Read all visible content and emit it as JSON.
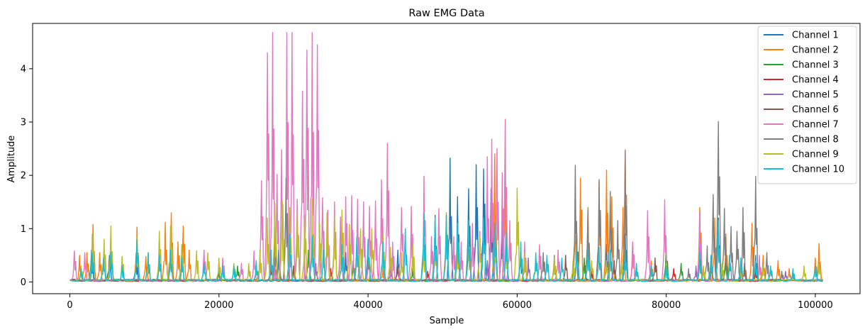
{
  "chart_data": {
    "type": "line",
    "title": "Raw EMG Data",
    "xlabel": "Sample",
    "ylabel": "Amplitude",
    "xlim": [
      -5000,
      106000
    ],
    "ylim": [
      -0.22,
      4.85
    ],
    "xticks": [
      0,
      20000,
      40000,
      60000,
      80000,
      100000
    ],
    "yticks": [
      0,
      1,
      2,
      3,
      4
    ],
    "legend_position": "top-right",
    "grid": false,
    "baseline": 0.03,
    "series": [
      {
        "name": "Channel 1",
        "color": "#1f77b4",
        "peaks": [
          [
            2900,
            0.6
          ],
          [
            5300,
            0.5
          ],
          [
            8900,
            0.55
          ],
          [
            13500,
            0.7
          ],
          [
            28000,
            0.6
          ],
          [
            37000,
            0.55
          ],
          [
            44000,
            0.6
          ],
          [
            47500,
            0.9
          ],
          [
            49000,
            1.25
          ],
          [
            51000,
            2.32
          ],
          [
            52000,
            1.6
          ],
          [
            53500,
            1.75
          ],
          [
            54500,
            2.2
          ],
          [
            55500,
            2.12
          ],
          [
            56500,
            1.75
          ],
          [
            58000,
            1.3
          ],
          [
            60500,
            0.6
          ],
          [
            68000,
            0.9
          ],
          [
            72000,
            0.7
          ],
          [
            74500,
            0.9
          ],
          [
            84500,
            0.7
          ],
          [
            87000,
            1.2
          ],
          [
            92000,
            0.5
          ],
          [
            97000,
            0.2
          ]
        ]
      },
      {
        "name": "Channel 2",
        "color": "#ff7f0e",
        "peaks": [
          [
            1300,
            0.5
          ],
          [
            2300,
            0.55
          ],
          [
            3100,
            1.08
          ],
          [
            4000,
            0.55
          ],
          [
            5500,
            0.95
          ],
          [
            9000,
            1.03
          ],
          [
            10200,
            0.48
          ],
          [
            12000,
            0.65
          ],
          [
            12800,
            1.12
          ],
          [
            13600,
            1.3
          ],
          [
            14500,
            0.75
          ],
          [
            15200,
            1.05
          ],
          [
            16000,
            0.6
          ],
          [
            20500,
            0.3
          ],
          [
            30000,
            0.3
          ],
          [
            42000,
            0.3
          ],
          [
            57000,
            2.4
          ],
          [
            58400,
            2.3
          ],
          [
            67800,
            1.25
          ],
          [
            68500,
            1.95
          ],
          [
            69500,
            1.4
          ],
          [
            71000,
            1.9
          ],
          [
            72000,
            2.1
          ],
          [
            72700,
            1.6
          ],
          [
            74200,
            1.4
          ],
          [
            74500,
            2.48
          ],
          [
            75500,
            0.75
          ],
          [
            78000,
            0.4
          ],
          [
            84500,
            1.4
          ],
          [
            86500,
            1.2
          ],
          [
            88000,
            0.9
          ],
          [
            91500,
            1.1
          ],
          [
            93000,
            0.5
          ],
          [
            95000,
            0.4
          ],
          [
            96500,
            0.25
          ],
          [
            100000,
            0.45
          ],
          [
            100500,
            0.72
          ]
        ]
      },
      {
        "name": "Channel 3",
        "color": "#2ca02c",
        "peaks": [
          [
            20000,
            0.2
          ],
          [
            22500,
            0.3
          ],
          [
            27000,
            0.5
          ],
          [
            32000,
            0.6
          ],
          [
            38000,
            0.4
          ],
          [
            46000,
            0.25
          ],
          [
            69000,
            0.45
          ],
          [
            80000,
            0.65
          ],
          [
            82000,
            0.35
          ],
          [
            88000,
            0.45
          ],
          [
            92000,
            0.3
          ]
        ]
      },
      {
        "name": "Channel 4",
        "color": "#d62728",
        "peaks": [
          [
            27000,
            0.3
          ],
          [
            35000,
            0.25
          ],
          [
            48000,
            0.2
          ],
          [
            70000,
            0.2
          ],
          [
            81000,
            0.25
          ],
          [
            92000,
            0.2
          ]
        ]
      },
      {
        "name": "Channel 5",
        "color": "#9467bd",
        "peaks": [
          [
            27500,
            0.4
          ],
          [
            33000,
            0.35
          ],
          [
            43000,
            0.3
          ],
          [
            56000,
            0.4
          ],
          [
            61500,
            0.45
          ],
          [
            84000,
            0.3
          ],
          [
            96000,
            0.2
          ]
        ]
      },
      {
        "name": "Channel 6",
        "color": "#8c564b",
        "peaks": [
          [
            30000,
            0.3
          ],
          [
            44000,
            0.3
          ],
          [
            66500,
            0.5
          ],
          [
            73000,
            0.4
          ],
          [
            78500,
            0.45
          ],
          [
            86000,
            0.4
          ],
          [
            90500,
            0.35
          ]
        ]
      },
      {
        "name": "Channel 7",
        "color": "#e377c2",
        "peaks": [
          [
            600,
            0.58
          ],
          [
            2000,
            0.55
          ],
          [
            12000,
            0.5
          ],
          [
            18000,
            0.6
          ],
          [
            20500,
            0.45
          ],
          [
            23000,
            0.35
          ],
          [
            24700,
            0.58
          ],
          [
            25700,
            1.9
          ],
          [
            26500,
            4.3
          ],
          [
            27200,
            4.68
          ],
          [
            27800,
            2.02
          ],
          [
            28400,
            2.48
          ],
          [
            29100,
            4.68
          ],
          [
            29800,
            4.68
          ],
          [
            30500,
            1.55
          ],
          [
            31200,
            3.58
          ],
          [
            31800,
            4.35
          ],
          [
            32500,
            4.68
          ],
          [
            33200,
            4.45
          ],
          [
            33900,
            1.58
          ],
          [
            34600,
            1.35
          ],
          [
            35500,
            1.5
          ],
          [
            36300,
            1.22
          ],
          [
            37000,
            1.6
          ],
          [
            37800,
            1.62
          ],
          [
            38600,
            1.55
          ],
          [
            39400,
            1.5
          ],
          [
            40200,
            1.42
          ],
          [
            41000,
            1.52
          ],
          [
            41800,
            1.92
          ],
          [
            42600,
            2.6
          ],
          [
            43300,
            0.75
          ],
          [
            44500,
            1.4
          ],
          [
            45800,
            1.42
          ],
          [
            47500,
            1.98
          ],
          [
            48500,
            0.85
          ],
          [
            49500,
            1.38
          ],
          [
            50500,
            1.3
          ],
          [
            51500,
            0.85
          ],
          [
            52500,
            0.75
          ],
          [
            54000,
            1.1
          ],
          [
            55000,
            0.95
          ],
          [
            56000,
            2.35
          ],
          [
            56600,
            2.68
          ],
          [
            57300,
            2.5
          ],
          [
            58000,
            2.05
          ],
          [
            58400,
            3.05
          ],
          [
            59000,
            1.15
          ],
          [
            61000,
            0.75
          ],
          [
            63000,
            0.7
          ],
          [
            65500,
            0.6
          ],
          [
            75500,
            0.75
          ],
          [
            77500,
            1.34
          ],
          [
            79800,
            1.54
          ],
          [
            84500,
            1.3
          ],
          [
            88500,
            0.5
          ],
          [
            92500,
            0.5
          ]
        ]
      },
      {
        "name": "Channel 8",
        "color": "#7f7f7f",
        "peaks": [
          [
            27500,
            1.1
          ],
          [
            29000,
            1.95
          ],
          [
            40000,
            0.6
          ],
          [
            61000,
            0.45
          ],
          [
            63500,
            0.55
          ],
          [
            65000,
            0.5
          ],
          [
            67800,
            2.19
          ],
          [
            69500,
            1.35
          ],
          [
            71000,
            1.92
          ],
          [
            72500,
            1.7
          ],
          [
            73500,
            1.15
          ],
          [
            74500,
            2.45
          ],
          [
            76000,
            0.3
          ],
          [
            83000,
            0.25
          ],
          [
            84500,
            0.5
          ],
          [
            85500,
            0.68
          ],
          [
            86300,
            1.64
          ],
          [
            87000,
            3.01
          ],
          [
            87800,
            1.38
          ],
          [
            88700,
            1.04
          ],
          [
            89500,
            0.95
          ],
          [
            90300,
            1.4
          ],
          [
            92000,
            1.98
          ],
          [
            93500,
            0.55
          ],
          [
            95500,
            0.2
          ]
        ]
      },
      {
        "name": "Channel 9",
        "color": "#bcbd22",
        "peaks": [
          [
            1500,
            0.3
          ],
          [
            3000,
            0.9
          ],
          [
            4600,
            0.8
          ],
          [
            5500,
            1.05
          ],
          [
            7000,
            0.48
          ],
          [
            9000,
            0.85
          ],
          [
            10500,
            0.55
          ],
          [
            12000,
            0.95
          ],
          [
            13500,
            1.04
          ],
          [
            15000,
            0.7
          ],
          [
            17000,
            0.58
          ],
          [
            18500,
            0.55
          ],
          [
            20000,
            0.45
          ],
          [
            22000,
            0.35
          ],
          [
            24000,
            0.35
          ],
          [
            25500,
            0.6
          ],
          [
            26500,
            1.2
          ],
          [
            27500,
            1.48
          ],
          [
            28500,
            1.52
          ],
          [
            29500,
            1.4
          ],
          [
            30500,
            1.3
          ],
          [
            31500,
            1.25
          ],
          [
            32500,
            1.55
          ],
          [
            33500,
            1.1
          ],
          [
            34500,
            1.3
          ],
          [
            35500,
            1.22
          ],
          [
            36500,
            1.35
          ],
          [
            37500,
            1.08
          ],
          [
            39000,
            1.0
          ],
          [
            40500,
            1.0
          ],
          [
            42000,
            0.9
          ],
          [
            43000,
            0.65
          ],
          [
            44500,
            0.55
          ],
          [
            46000,
            0.7
          ],
          [
            47500,
            0.75
          ],
          [
            49000,
            0.75
          ],
          [
            50500,
            1.3
          ],
          [
            52000,
            0.65
          ],
          [
            53500,
            0.85
          ],
          [
            55000,
            0.85
          ],
          [
            57000,
            0.9
          ],
          [
            58500,
            0.8
          ],
          [
            60000,
            1.76
          ],
          [
            61000,
            0.55
          ],
          [
            62500,
            0.5
          ],
          [
            65000,
            0.45
          ],
          [
            67500,
            0.4
          ],
          [
            70000,
            0.4
          ],
          [
            72000,
            0.4
          ],
          [
            74000,
            0.35
          ],
          [
            78000,
            0.3
          ],
          [
            80000,
            0.35
          ],
          [
            85000,
            0.3
          ],
          [
            87500,
            0.35
          ],
          [
            90000,
            0.3
          ],
          [
            93000,
            0.3
          ],
          [
            98500,
            0.3
          ],
          [
            100500,
            0.35
          ]
        ]
      },
      {
        "name": "Channel 10",
        "color": "#17becf",
        "peaks": [
          [
            1500,
            0.25
          ],
          [
            3000,
            0.55
          ],
          [
            4500,
            0.45
          ],
          [
            5500,
            0.55
          ],
          [
            7000,
            0.3
          ],
          [
            9000,
            0.8
          ],
          [
            10500,
            0.55
          ],
          [
            12000,
            0.5
          ],
          [
            13500,
            0.6
          ],
          [
            15000,
            0.45
          ],
          [
            18000,
            0.35
          ],
          [
            20500,
            0.3
          ],
          [
            22000,
            0.3
          ],
          [
            25000,
            0.4
          ],
          [
            27000,
            0.6
          ],
          [
            29500,
            0.9
          ],
          [
            32500,
            0.85
          ],
          [
            34000,
            0.6
          ],
          [
            36500,
            0.7
          ],
          [
            38500,
            0.85
          ],
          [
            40000,
            0.8
          ],
          [
            42000,
            0.75
          ],
          [
            45000,
            1.0
          ],
          [
            47500,
            1.28
          ],
          [
            49000,
            1.2
          ],
          [
            50500,
            1.25
          ],
          [
            52000,
            1.1
          ],
          [
            53500,
            1.15
          ],
          [
            55500,
            1.2
          ],
          [
            57000,
            1.1
          ],
          [
            58500,
            0.95
          ],
          [
            60500,
            0.75
          ],
          [
            62500,
            0.55
          ],
          [
            64000,
            0.5
          ],
          [
            66000,
            0.45
          ],
          [
            68000,
            0.7
          ],
          [
            69500,
            0.6
          ],
          [
            71000,
            0.65
          ],
          [
            72500,
            0.6
          ],
          [
            74500,
            0.6
          ],
          [
            76000,
            0.35
          ],
          [
            78000,
            0.3
          ],
          [
            80000,
            0.3
          ],
          [
            84500,
            0.55
          ],
          [
            86000,
            0.5
          ],
          [
            87000,
            1.15
          ],
          [
            88500,
            0.5
          ],
          [
            90000,
            0.45
          ],
          [
            92000,
            0.4
          ],
          [
            94000,
            0.3
          ],
          [
            97000,
            0.25
          ],
          [
            100000,
            0.3
          ]
        ]
      }
    ]
  }
}
